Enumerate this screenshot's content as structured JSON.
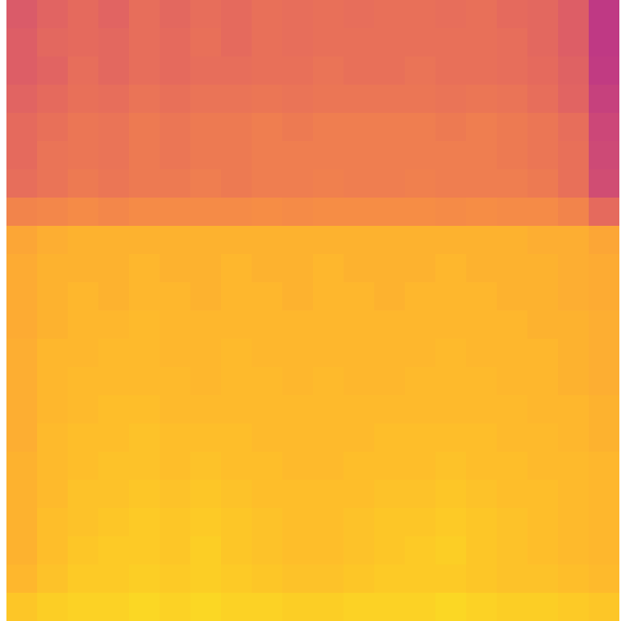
{
  "chart_data": {
    "type": "heatmap",
    "color": "plasma",
    "zlim": [
      0,
      1
    ],
    "tick_labels": false,
    "values": [
      [
        0.57,
        0.6,
        0.62,
        0.6,
        0.63,
        0.61,
        0.63,
        0.62,
        0.64,
        0.63,
        0.64,
        0.63,
        0.64,
        0.64,
        0.63,
        0.64,
        0.62,
        0.61,
        0.58,
        0.45
      ],
      [
        0.58,
        0.61,
        0.62,
        0.61,
        0.63,
        0.62,
        0.64,
        0.62,
        0.64,
        0.63,
        0.64,
        0.64,
        0.64,
        0.64,
        0.64,
        0.64,
        0.63,
        0.61,
        0.58,
        0.45
      ],
      [
        0.58,
        0.6,
        0.63,
        0.61,
        0.63,
        0.62,
        0.63,
        0.63,
        0.64,
        0.64,
        0.65,
        0.64,
        0.64,
        0.65,
        0.64,
        0.64,
        0.63,
        0.62,
        0.59,
        0.46
      ],
      [
        0.6,
        0.62,
        0.64,
        0.63,
        0.65,
        0.64,
        0.65,
        0.65,
        0.66,
        0.65,
        0.66,
        0.66,
        0.66,
        0.66,
        0.65,
        0.66,
        0.65,
        0.63,
        0.6,
        0.48
      ],
      [
        0.62,
        0.64,
        0.66,
        0.65,
        0.67,
        0.66,
        0.67,
        0.67,
        0.68,
        0.67,
        0.68,
        0.68,
        0.68,
        0.68,
        0.67,
        0.68,
        0.67,
        0.66,
        0.63,
        0.5
      ],
      [
        0.62,
        0.65,
        0.66,
        0.65,
        0.67,
        0.66,
        0.67,
        0.67,
        0.68,
        0.68,
        0.68,
        0.68,
        0.68,
        0.68,
        0.68,
        0.68,
        0.67,
        0.66,
        0.64,
        0.51
      ],
      [
        0.63,
        0.65,
        0.67,
        0.66,
        0.67,
        0.67,
        0.68,
        0.67,
        0.68,
        0.68,
        0.69,
        0.68,
        0.68,
        0.69,
        0.68,
        0.68,
        0.68,
        0.67,
        0.64,
        0.52
      ],
      [
        0.7,
        0.71,
        0.72,
        0.71,
        0.72,
        0.72,
        0.72,
        0.72,
        0.73,
        0.72,
        0.73,
        0.73,
        0.73,
        0.73,
        0.72,
        0.73,
        0.72,
        0.72,
        0.7,
        0.62
      ],
      [
        0.8,
        0.82,
        0.83,
        0.83,
        0.83,
        0.83,
        0.83,
        0.83,
        0.83,
        0.83,
        0.83,
        0.83,
        0.83,
        0.83,
        0.83,
        0.83,
        0.83,
        0.82,
        0.82,
        0.8
      ],
      [
        0.81,
        0.83,
        0.83,
        0.83,
        0.84,
        0.83,
        0.83,
        0.84,
        0.83,
        0.83,
        0.84,
        0.83,
        0.83,
        0.83,
        0.84,
        0.83,
        0.83,
        0.83,
        0.82,
        0.81
      ],
      [
        0.81,
        0.83,
        0.84,
        0.83,
        0.84,
        0.84,
        0.83,
        0.84,
        0.84,
        0.83,
        0.84,
        0.84,
        0.83,
        0.84,
        0.84,
        0.84,
        0.83,
        0.83,
        0.82,
        0.81
      ],
      [
        0.81,
        0.83,
        0.84,
        0.84,
        0.85,
        0.84,
        0.84,
        0.84,
        0.84,
        0.84,
        0.84,
        0.84,
        0.84,
        0.84,
        0.84,
        0.84,
        0.84,
        0.83,
        0.83,
        0.82
      ],
      [
        0.82,
        0.84,
        0.84,
        0.85,
        0.85,
        0.84,
        0.84,
        0.85,
        0.84,
        0.84,
        0.84,
        0.84,
        0.84,
        0.84,
        0.85,
        0.84,
        0.84,
        0.84,
        0.83,
        0.82
      ],
      [
        0.82,
        0.84,
        0.85,
        0.85,
        0.85,
        0.85,
        0.84,
        0.85,
        0.85,
        0.84,
        0.85,
        0.84,
        0.84,
        0.85,
        0.85,
        0.85,
        0.84,
        0.84,
        0.83,
        0.82
      ],
      [
        0.82,
        0.84,
        0.85,
        0.86,
        0.86,
        0.85,
        0.85,
        0.85,
        0.85,
        0.85,
        0.85,
        0.85,
        0.85,
        0.85,
        0.85,
        0.85,
        0.85,
        0.84,
        0.84,
        0.83
      ],
      [
        0.82,
        0.85,
        0.86,
        0.86,
        0.87,
        0.86,
        0.86,
        0.86,
        0.85,
        0.85,
        0.85,
        0.85,
        0.86,
        0.86,
        0.86,
        0.86,
        0.85,
        0.85,
        0.84,
        0.83
      ],
      [
        0.83,
        0.85,
        0.86,
        0.87,
        0.87,
        0.86,
        0.87,
        0.86,
        0.86,
        0.85,
        0.85,
        0.86,
        0.86,
        0.86,
        0.87,
        0.86,
        0.86,
        0.85,
        0.85,
        0.84
      ],
      [
        0.83,
        0.85,
        0.87,
        0.87,
        0.88,
        0.87,
        0.88,
        0.87,
        0.86,
        0.86,
        0.86,
        0.86,
        0.87,
        0.87,
        0.88,
        0.87,
        0.86,
        0.86,
        0.85,
        0.84
      ],
      [
        0.83,
        0.86,
        0.87,
        0.88,
        0.89,
        0.88,
        0.89,
        0.88,
        0.87,
        0.86,
        0.86,
        0.87,
        0.88,
        0.88,
        0.89,
        0.88,
        0.87,
        0.86,
        0.85,
        0.84
      ],
      [
        0.83,
        0.86,
        0.88,
        0.89,
        0.89,
        0.88,
        0.9,
        0.88,
        0.87,
        0.86,
        0.86,
        0.87,
        0.88,
        0.89,
        0.9,
        0.88,
        0.87,
        0.86,
        0.85,
        0.84
      ],
      [
        0.84,
        0.87,
        0.89,
        0.89,
        0.9,
        0.89,
        0.9,
        0.89,
        0.88,
        0.87,
        0.87,
        0.88,
        0.89,
        0.89,
        0.89,
        0.88,
        0.87,
        0.87,
        0.86,
        0.85
      ],
      [
        0.88,
        0.9,
        0.91,
        0.91,
        0.92,
        0.91,
        0.92,
        0.91,
        0.91,
        0.9,
        0.9,
        0.91,
        0.91,
        0.91,
        0.92,
        0.91,
        0.9,
        0.9,
        0.89,
        0.88
      ]
    ]
  }
}
